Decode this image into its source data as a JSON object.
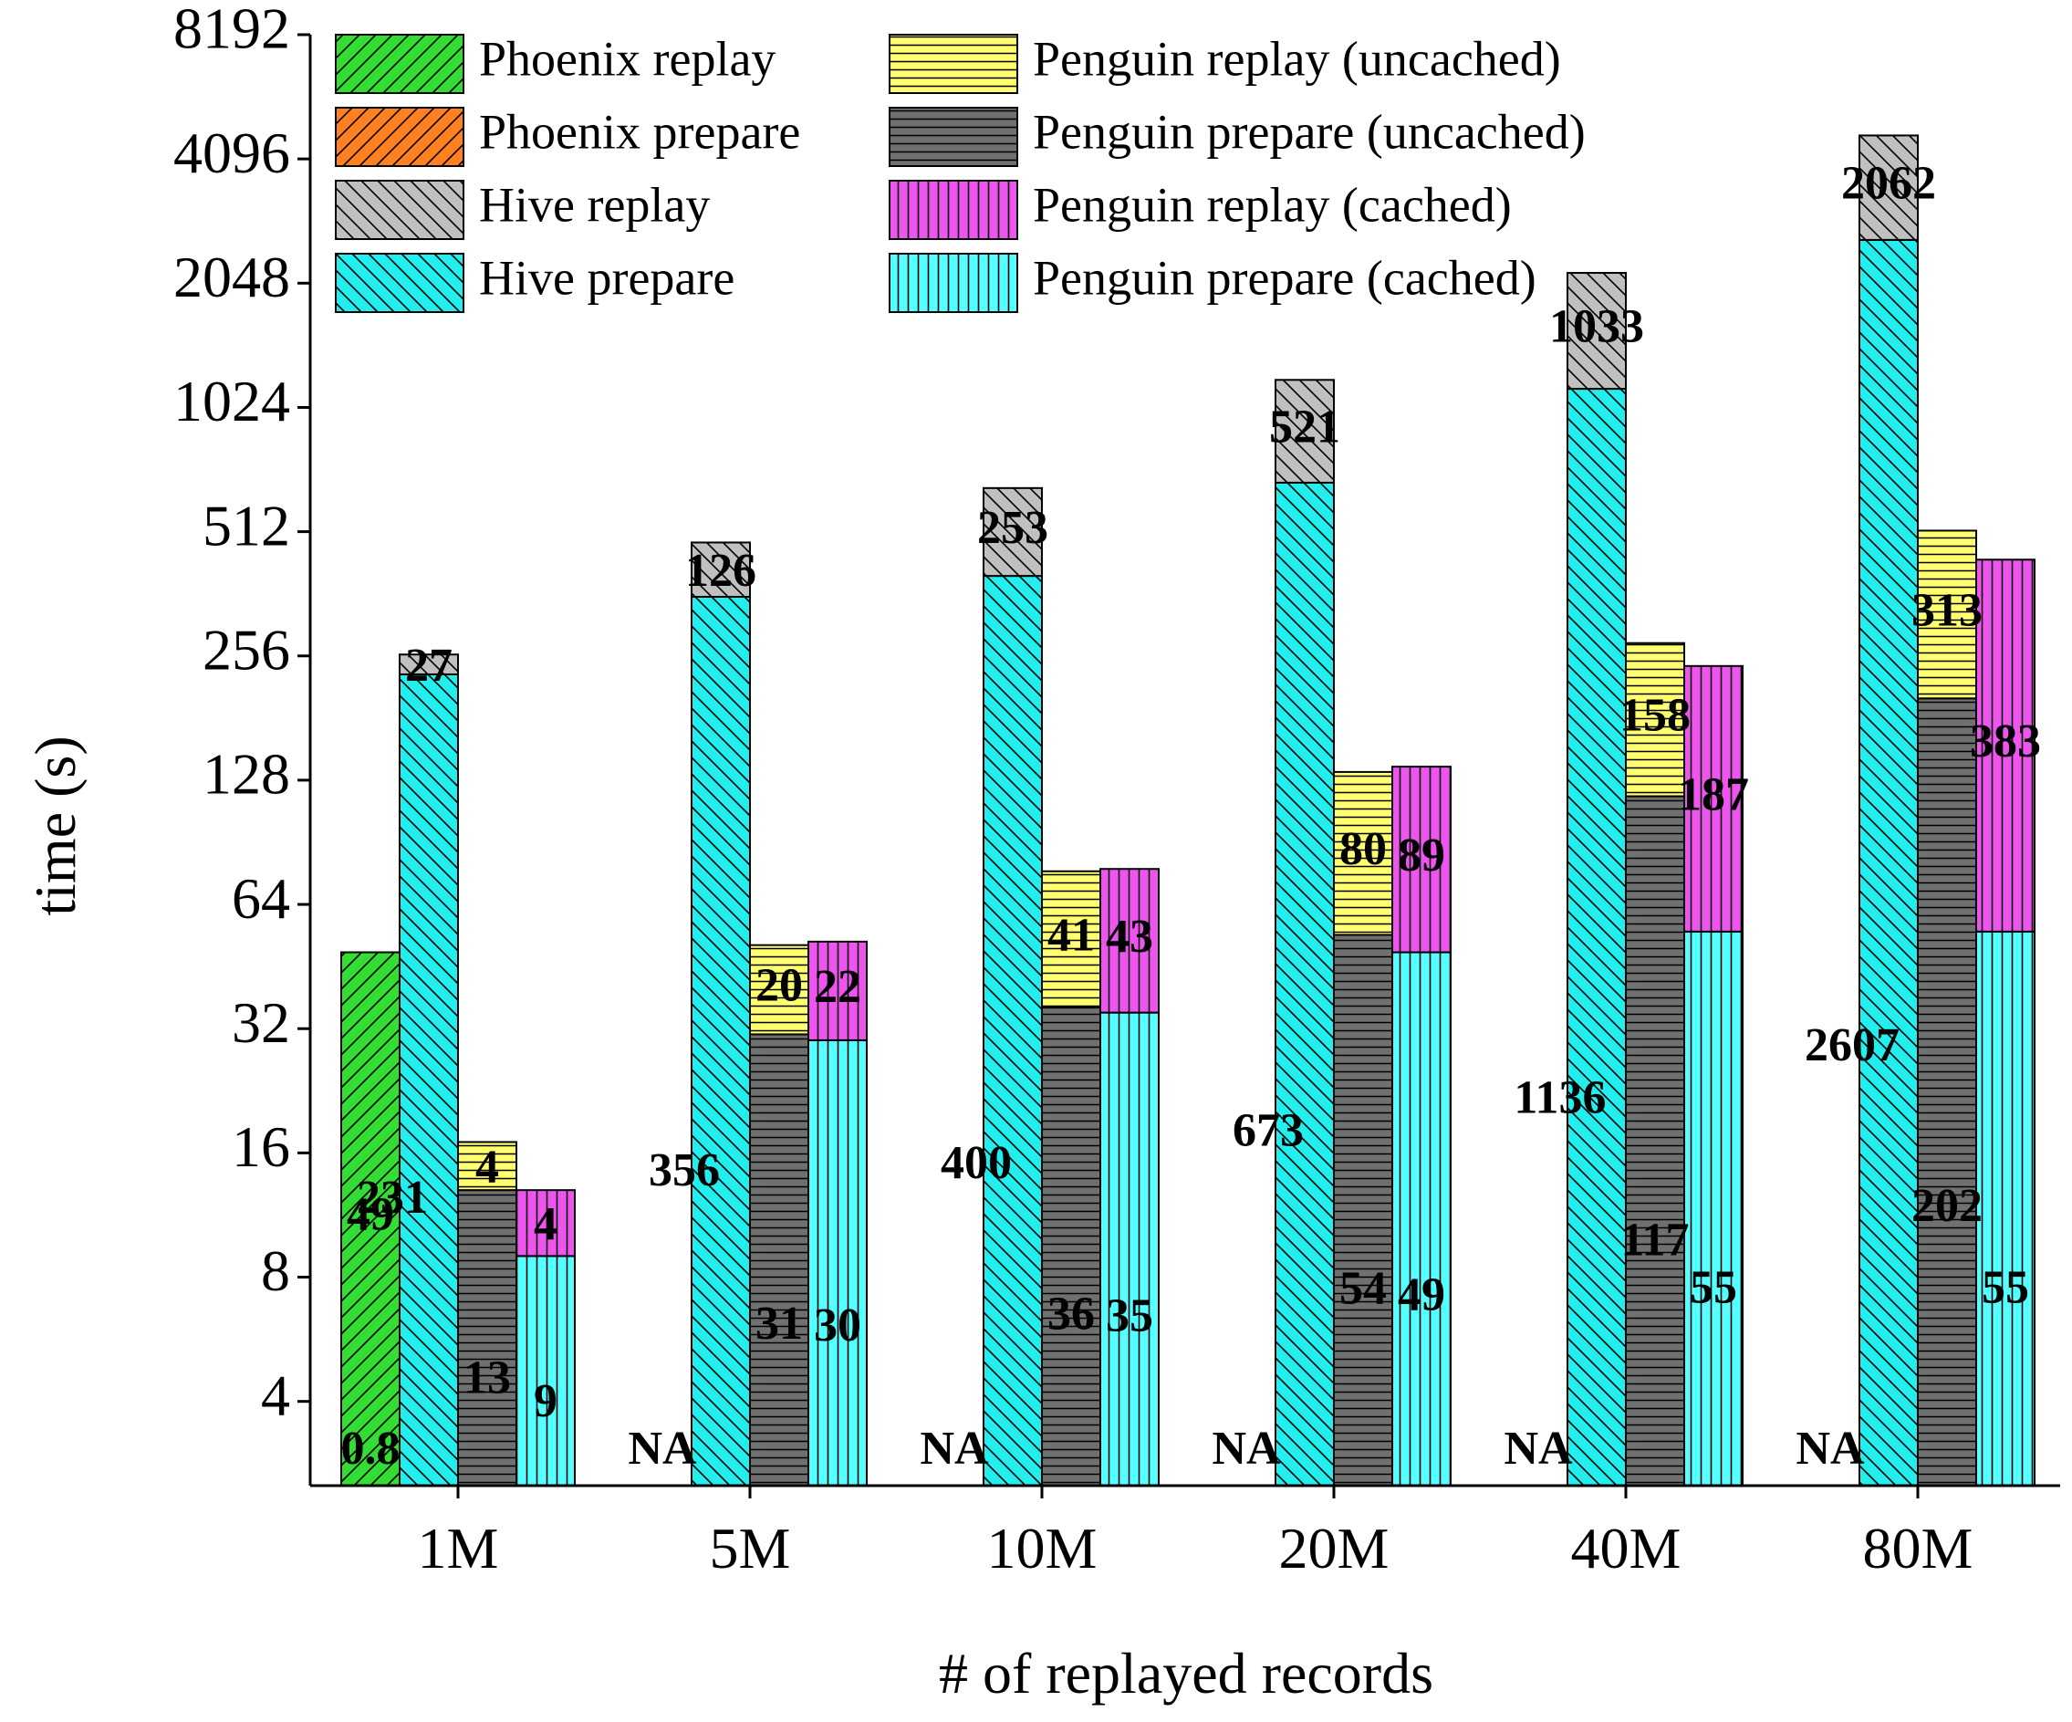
{
  "chart_data": {
    "type": "bar",
    "stacked": true,
    "log_base": 2,
    "xlabel": "# of replayed records",
    "ylabel": "time (s)",
    "ylim": [
      2.5,
      8192
    ],
    "yticks": [
      "4",
      "8",
      "16",
      "32",
      "64",
      "128",
      "256",
      "512",
      "1024",
      "2048",
      "4096",
      "8192"
    ],
    "categories": [
      "1M",
      "5M",
      "10M",
      "20M",
      "40M",
      "80M"
    ],
    "na_label": "NA",
    "series": [
      {
        "name": "Phoenix replay",
        "color": "#33dd33",
        "pattern": "diag-fwd"
      },
      {
        "name": "Phoenix prepare",
        "color": "#ff8020",
        "pattern": "diag-fwd"
      },
      {
        "name": "Hive replay",
        "color": "#c0c0c0",
        "pattern": "diag-back"
      },
      {
        "name": "Hive prepare",
        "color": "#22eeee",
        "pattern": "diag-back"
      },
      {
        "name": "Penguin replay (uncached)",
        "color": "#ffff70",
        "pattern": "horiz"
      },
      {
        "name": "Penguin prepare (uncached)",
        "color": "#707070",
        "pattern": "horiz"
      },
      {
        "name": "Penguin replay (cached)",
        "color": "#ee55ee",
        "pattern": "vert"
      },
      {
        "name": "Penguin prepare (cached)",
        "color": "#55ffff",
        "pattern": "vert"
      }
    ],
    "groups": [
      {
        "category": "1M",
        "bars": [
          {
            "system": "Phoenix",
            "segments": [
              {
                "value": 0.8,
                "label": "0.8",
                "series": "Phoenix prepare"
              },
              {
                "value": 49,
                "label": "49",
                "series": "Phoenix replay"
              }
            ]
          },
          {
            "system": "Hive",
            "segments": [
              {
                "value": 231,
                "label": "231",
                "series": "Hive prepare"
              },
              {
                "value": 27,
                "label": "27",
                "series": "Hive replay"
              }
            ]
          },
          {
            "system": "Penguin uncached",
            "segments": [
              {
                "value": 13,
                "label": "13",
                "series": "Penguin prepare (uncached)"
              },
              {
                "value": 4,
                "label": "4",
                "series": "Penguin replay (uncached)"
              }
            ]
          },
          {
            "system": "Penguin cached",
            "segments": [
              {
                "value": 9,
                "label": "9",
                "series": "Penguin prepare (cached)"
              },
              {
                "value": 4,
                "label": "4",
                "series": "Penguin replay (cached)"
              }
            ]
          }
        ]
      },
      {
        "category": "5M",
        "bars": [
          {
            "system": "Phoenix",
            "na": true,
            "segments": []
          },
          {
            "system": "Hive",
            "segments": [
              {
                "value": 356,
                "label": "356",
                "series": "Hive prepare"
              },
              {
                "value": 126,
                "label": "126",
                "series": "Hive replay"
              }
            ]
          },
          {
            "system": "Penguin uncached",
            "segments": [
              {
                "value": 31,
                "label": "31",
                "series": "Penguin prepare (uncached)"
              },
              {
                "value": 20,
                "label": "20",
                "series": "Penguin replay (uncached)"
              }
            ]
          },
          {
            "system": "Penguin cached",
            "segments": [
              {
                "value": 30,
                "label": "30",
                "series": "Penguin prepare (cached)"
              },
              {
                "value": 22,
                "label": "22",
                "series": "Penguin replay (cached)"
              }
            ]
          }
        ]
      },
      {
        "category": "10M",
        "bars": [
          {
            "system": "Phoenix",
            "na": true,
            "segments": []
          },
          {
            "system": "Hive",
            "segments": [
              {
                "value": 400,
                "label": "400",
                "series": "Hive prepare"
              },
              {
                "value": 253,
                "label": "253",
                "series": "Hive replay"
              }
            ]
          },
          {
            "system": "Penguin uncached",
            "segments": [
              {
                "value": 36,
                "label": "36",
                "series": "Penguin prepare (uncached)"
              },
              {
                "value": 41,
                "label": "41",
                "series": "Penguin replay (uncached)"
              }
            ]
          },
          {
            "system": "Penguin cached",
            "segments": [
              {
                "value": 35,
                "label": "35",
                "series": "Penguin prepare (cached)"
              },
              {
                "value": 43,
                "label": "43",
                "series": "Penguin replay (cached)"
              }
            ]
          }
        ]
      },
      {
        "category": "20M",
        "bars": [
          {
            "system": "Phoenix",
            "na": true,
            "segments": []
          },
          {
            "system": "Hive",
            "segments": [
              {
                "value": 673,
                "label": "673",
                "series": "Hive prepare"
              },
              {
                "value": 521,
                "label": "521",
                "series": "Hive replay"
              }
            ]
          },
          {
            "system": "Penguin uncached",
            "segments": [
              {
                "value": 54,
                "label": "54",
                "series": "Penguin prepare (uncached)"
              },
              {
                "value": 80,
                "label": "80",
                "series": "Penguin replay (uncached)"
              }
            ]
          },
          {
            "system": "Penguin cached",
            "segments": [
              {
                "value": 49,
                "label": "49",
                "series": "Penguin prepare (cached)"
              },
              {
                "value": 89,
                "label": "89",
                "series": "Penguin replay (cached)"
              }
            ]
          }
        ]
      },
      {
        "category": "40M",
        "bars": [
          {
            "system": "Phoenix",
            "na": true,
            "segments": []
          },
          {
            "system": "Hive",
            "segments": [
              {
                "value": 1136,
                "label": "1136",
                "series": "Hive prepare"
              },
              {
                "value": 1033,
                "label": "1033",
                "series": "Hive replay"
              }
            ]
          },
          {
            "system": "Penguin uncached",
            "segments": [
              {
                "value": 117,
                "label": "117",
                "series": "Penguin prepare (uncached)"
              },
              {
                "value": 158,
                "label": "158",
                "series": "Penguin replay (uncached)"
              }
            ]
          },
          {
            "system": "Penguin cached",
            "segments": [
              {
                "value": 55,
                "label": "55",
                "series": "Penguin prepare (cached)"
              },
              {
                "value": 187,
                "label": "187",
                "series": "Penguin replay (cached)"
              }
            ]
          }
        ]
      },
      {
        "category": "80M",
        "bars": [
          {
            "system": "Phoenix",
            "na": true,
            "segments": []
          },
          {
            "system": "Hive",
            "segments": [
              {
                "value": 2607,
                "label": "2607",
                "series": "Hive prepare"
              },
              {
                "value": 2062,
                "label": "2062",
                "series": "Hive replay"
              }
            ]
          },
          {
            "system": "Penguin uncached",
            "segments": [
              {
                "value": 202,
                "label": "202",
                "series": "Penguin prepare (uncached)"
              },
              {
                "value": 313,
                "label": "313",
                "series": "Penguin replay (uncached)"
              }
            ]
          },
          {
            "system": "Penguin cached",
            "segments": [
              {
                "value": 55,
                "label": "55",
                "series": "Penguin prepare (cached)"
              },
              {
                "value": 383,
                "label": "383",
                "series": "Penguin replay (cached)"
              }
            ]
          }
        ]
      }
    ],
    "legend": {
      "position": "top-left",
      "columns": 2
    }
  }
}
